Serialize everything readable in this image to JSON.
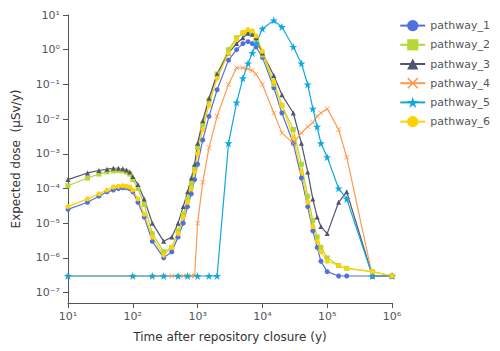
{
  "chart_data": {
    "type": "line",
    "xlabel": "Time after repository closure (y)",
    "ylabel": "Expected dose  (μSv/y)",
    "log": true,
    "grid": false,
    "legend": "upper right",
    "xlim": [
      10,
      1000000
    ],
    "ylim": [
      5e-08,
      10
    ],
    "xticks": [
      {
        "value": 10,
        "label": "10¹"
      },
      {
        "value": 100,
        "label": "10²"
      },
      {
        "value": 1000,
        "label": "10³"
      },
      {
        "value": 10000,
        "label": "10⁴"
      },
      {
        "value": 100000,
        "label": "10⁵"
      },
      {
        "value": 1000000,
        "label": "10⁶"
      }
    ],
    "yticks": [
      {
        "value": 1e-07,
        "label": "10⁻⁷"
      },
      {
        "value": 1e-06,
        "label": "10⁻⁶"
      },
      {
        "value": 1e-05,
        "label": "10⁻⁵"
      },
      {
        "value": 0.0001,
        "label": "10⁻⁴"
      },
      {
        "value": 0.001,
        "label": "10⁻³"
      },
      {
        "value": 0.01,
        "label": "10⁻²"
      },
      {
        "value": 0.1,
        "label": "10⁻¹"
      },
      {
        "value": 1,
        "label": "10⁰"
      },
      {
        "value": 10,
        "label": "10¹"
      }
    ],
    "series": [
      {
        "name": "pathway_1",
        "marker": "circle",
        "x": [
          10,
          20,
          30,
          40,
          50,
          60,
          70,
          80,
          90,
          100,
          120,
          150,
          200,
          300,
          400,
          500,
          600,
          700,
          800,
          900,
          1000,
          1200,
          1500,
          2000,
          3000,
          4000,
          5000,
          6000,
          7000,
          8000,
          10000,
          15000,
          20000,
          30000,
          40000,
          50000,
          60000,
          70000,
          80000,
          100000,
          150000,
          200000,
          500000,
          1000000
        ],
        "values": [
          2.5e-05,
          4e-05,
          6e-05,
          8e-05,
          9e-05,
          0.0001,
          0.000105,
          0.000105,
          0.0001,
          8e-05,
          4e-05,
          1.5e-05,
          3e-06,
          1e-06,
          1.5e-06,
          4e-06,
          1e-05,
          3e-05,
          7e-05,
          0.00018,
          0.0005,
          0.0025,
          0.012,
          0.07,
          0.5,
          1.0,
          1.5,
          1.7,
          1.5,
          1.2,
          0.6,
          0.08,
          0.015,
          0.002,
          0.0002,
          3e-05,
          6e-06,
          2e-06,
          8e-07,
          4e-07,
          3e-07,
          3e-07,
          3e-07,
          3e-07
        ]
      },
      {
        "name": "pathway_2",
        "marker": "square",
        "x": [
          10,
          20,
          30,
          40,
          50,
          60,
          70,
          80,
          90,
          100,
          120,
          150,
          200,
          300,
          400,
          500,
          600,
          700,
          800,
          900,
          1000,
          1200,
          1500,
          2000,
          3000,
          4000,
          5000,
          6000,
          7000,
          8000,
          10000,
          15000,
          20000,
          30000,
          40000,
          50000,
          60000,
          70000,
          80000,
          100000,
          150000,
          200000,
          500000,
          1000000
        ],
        "values": [
          0.00012,
          0.0002,
          0.00026,
          0.0003,
          0.00032,
          0.00033,
          0.00032,
          0.0003,
          0.00026,
          0.00018,
          0.0001,
          3.5e-05,
          5e-06,
          1.5e-06,
          2e-06,
          6e-06,
          1.8e-05,
          5e-05,
          0.00014,
          0.0004,
          0.0015,
          0.007,
          0.035,
          0.2,
          1.0,
          2.2,
          3.0,
          3.2,
          2.8,
          2.0,
          0.7,
          0.1,
          0.025,
          0.005,
          0.0005,
          6e-05,
          1.2e-05,
          4e-06,
          2e-06,
          1e-06,
          6e-07,
          5e-07,
          4e-07,
          3e-07
        ]
      },
      {
        "name": "pathway_3",
        "marker": "triangle",
        "x": [
          10,
          20,
          30,
          40,
          50,
          60,
          70,
          80,
          90,
          100,
          120,
          150,
          200,
          300,
          400,
          500,
          600,
          700,
          800,
          900,
          1000,
          1200,
          1500,
          2000,
          3000,
          4000,
          5000,
          6000,
          7000,
          8000,
          10000,
          15000,
          20000,
          30000,
          40000,
          50000,
          60000,
          70000,
          80000,
          100000,
          150000,
          200000,
          500000,
          1000000
        ],
        "values": [
          0.00018,
          0.00028,
          0.00033,
          0.00036,
          0.00038,
          0.00038,
          0.00037,
          0.00034,
          0.0003,
          0.00022,
          0.00013,
          5e-05,
          1e-05,
          3e-06,
          4e-06,
          1e-05,
          3e-05,
          8e-05,
          0.0002,
          0.0005,
          0.002,
          0.009,
          0.04,
          0.2,
          0.8,
          1.5,
          2.2,
          3.0,
          2.8,
          2.2,
          0.8,
          0.18,
          0.05,
          0.015,
          0.002,
          0.0003,
          5e-05,
          1.5e-05,
          8e-06,
          5e-06,
          4e-05,
          8e-05,
          3e-07,
          3e-07
        ]
      },
      {
        "name": "pathway_4",
        "marker": "x",
        "x": [
          10,
          100,
          200,
          300,
          400,
          500,
          600,
          700,
          800,
          900,
          1000,
          1200,
          1500,
          2000,
          3000,
          4000,
          5000,
          6000,
          7000,
          8000,
          10000,
          15000,
          20000,
          30000,
          40000,
          50000,
          60000,
          70000,
          80000,
          100000,
          150000,
          200000,
          500000,
          1000000
        ],
        "values": [
          3e-07,
          3e-07,
          3e-07,
          3e-07,
          3e-07,
          3e-07,
          3e-07,
          3e-07,
          3e-07,
          3e-07,
          1e-05,
          0.00015,
          0.0015,
          0.012,
          0.1,
          0.3,
          0.3,
          0.28,
          0.25,
          0.2,
          0.1,
          0.015,
          0.004,
          0.002,
          0.004,
          0.006,
          0.008,
          0.012,
          0.015,
          0.02,
          0.005,
          0.0008,
          3e-07,
          3e-07
        ]
      },
      {
        "name": "pathway_5",
        "marker": "star",
        "x": [
          10,
          100,
          200,
          300,
          500,
          700,
          1000,
          1500,
          2000,
          3000,
          4000,
          5000,
          6000,
          7000,
          8000,
          10000,
          15000,
          20000,
          30000,
          40000,
          50000,
          60000,
          70000,
          80000,
          100000,
          150000,
          200000,
          500000,
          1000000
        ],
        "values": [
          3e-07,
          3e-07,
          3e-07,
          3e-07,
          3e-07,
          3e-07,
          3e-07,
          3e-07,
          3e-07,
          0.002,
          0.03,
          0.15,
          0.4,
          0.8,
          1.5,
          4.0,
          7.0,
          4.5,
          1.2,
          0.4,
          0.1,
          0.02,
          0.006,
          0.002,
          0.0008,
          0.0001,
          5e-05,
          3e-07,
          3e-07
        ]
      },
      {
        "name": "pathway_6",
        "marker": "circle",
        "x": [
          10,
          20,
          30,
          40,
          50,
          60,
          70,
          80,
          90,
          100,
          120,
          150,
          200,
          300,
          400,
          500,
          600,
          700,
          800,
          900,
          1000,
          1200,
          1500,
          2000,
          3000,
          4000,
          5000,
          6000,
          7000,
          8000,
          10000,
          15000,
          20000,
          30000,
          40000,
          50000,
          60000,
          70000,
          80000,
          100000,
          150000,
          200000,
          500000,
          1000000
        ],
        "values": [
          3e-05,
          5e-05,
          7e-05,
          9e-05,
          0.00011,
          0.000115,
          0.00012,
          0.000115,
          0.00011,
          9e-05,
          5e-05,
          1.8e-05,
          4e-06,
          1.2e-06,
          2e-06,
          5e-06,
          1.5e-05,
          4e-05,
          0.0001,
          0.0003,
          0.001,
          0.005,
          0.025,
          0.15,
          0.8,
          2.0,
          3.2,
          3.8,
          3.5,
          2.5,
          0.9,
          0.12,
          0.025,
          0.003,
          0.0003,
          4e-05,
          8e-06,
          3e-06,
          1.5e-06,
          8e-07,
          6e-07,
          5e-07,
          4e-07,
          3e-07
        ]
      }
    ]
  }
}
